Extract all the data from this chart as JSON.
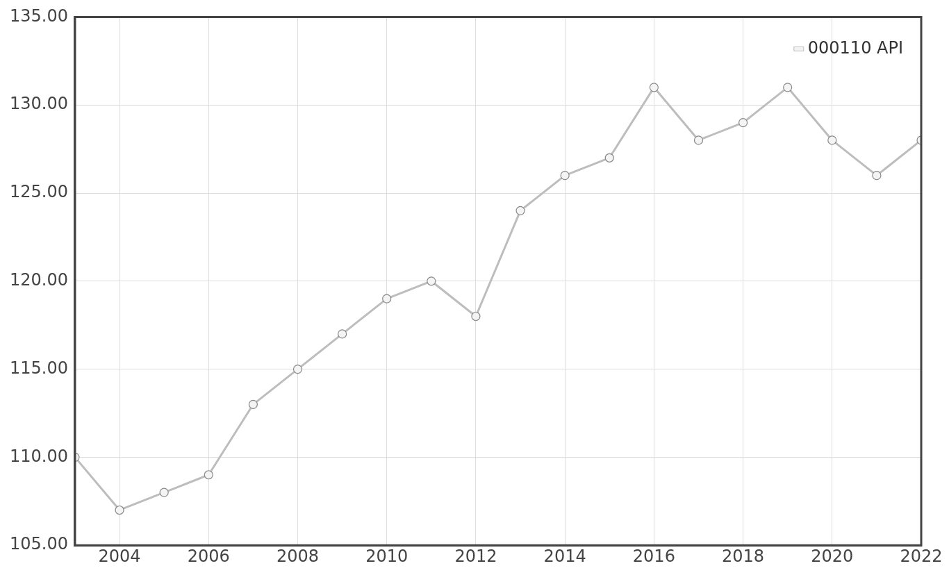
{
  "chart_data": {
    "type": "line",
    "x": [
      2003,
      2004,
      2005,
      2006,
      2007,
      2008,
      2009,
      2010,
      2011,
      2012,
      2013,
      2014,
      2015,
      2016,
      2017,
      2018,
      2019,
      2020,
      2021,
      2022
    ],
    "series": [
      {
        "name": "000110 API",
        "color": "#bdbdbd",
        "values": [
          110,
          107,
          108,
          109,
          113,
          115,
          117,
          119,
          120,
          118,
          124,
          126,
          127,
          131,
          128,
          129,
          131,
          128,
          126,
          128
        ]
      }
    ],
    "xlim": [
      2003,
      2022
    ],
    "xticks": [
      2004,
      2006,
      2008,
      2010,
      2012,
      2014,
      2016,
      2018,
      2020,
      2022
    ],
    "ylim": [
      105,
      135
    ],
    "yticks": [
      {
        "value": 105,
        "label": "105.00"
      },
      {
        "value": 110,
        "label": "110.00"
      },
      {
        "value": 115,
        "label": "115.00"
      },
      {
        "value": 120,
        "label": "120.00"
      },
      {
        "value": 125,
        "label": "125.00"
      },
      {
        "value": 130,
        "label": "130.00"
      },
      {
        "value": 135,
        "label": "135.00"
      }
    ],
    "grid": true,
    "legend": "top right",
    "marker": "circle",
    "line_style": "solid"
  }
}
